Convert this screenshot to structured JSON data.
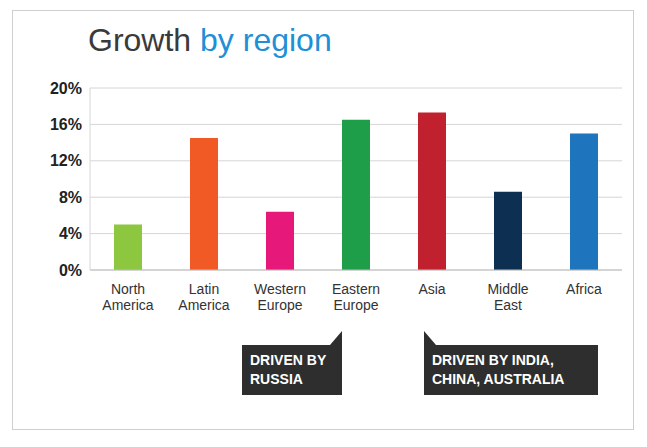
{
  "chart_data": {
    "type": "bar",
    "title": "Growth by region",
    "categories": [
      "North America",
      "Latin America",
      "Western Europe",
      "Eastern Europe",
      "Asia",
      "Middle East",
      "Africa"
    ],
    "values": [
      5,
      14.5,
      6.4,
      16.5,
      17.3,
      8.6,
      15
    ],
    "colors": [
      "#8dc63f",
      "#f15a24",
      "#e6197a",
      "#1e9e48",
      "#c1202e",
      "#0d2f52",
      "#1f75bd"
    ],
    "ylim": [
      0,
      20
    ],
    "yticks": [
      {
        "value": 0,
        "label": "0%"
      },
      {
        "value": 4,
        "label": "4%"
      },
      {
        "value": 8,
        "label": "8%"
      },
      {
        "value": 12,
        "label": "12%"
      },
      {
        "value": 16,
        "label": "16%"
      },
      {
        "value": 20,
        "label": "20%"
      }
    ],
    "grid": true,
    "annotations": [
      {
        "text": "DRIVEN BY RUSSIA",
        "category": "Eastern Europe"
      },
      {
        "text": "DRIVEN BY INDIA, CHINA, AUSTRALIA",
        "category": "Asia"
      }
    ]
  }
}
